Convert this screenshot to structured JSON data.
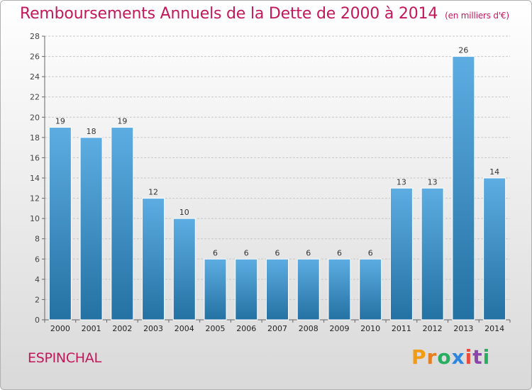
{
  "title": "Remboursements Annuels de la Dette de 2000 à 2014",
  "unit_note": "(en milliers d'€)",
  "commune": "ESPINCHAL",
  "brand": {
    "letters": [
      "P",
      "r",
      "o",
      "x",
      "i",
      "t",
      "i"
    ],
    "colors": [
      "#f39c12",
      "#e67e22",
      "#27ae60",
      "#2e86de",
      "#e74c3c",
      "#8e44ad",
      "#27ae60"
    ]
  },
  "colors": {
    "bar_top": "#5dade2",
    "bar_bottom": "#2471a3",
    "accent": "#c2185b"
  },
  "chart_data": {
    "type": "bar",
    "categories": [
      "2000",
      "2001",
      "2002",
      "2003",
      "2004",
      "2005",
      "2006",
      "2007",
      "2008",
      "2009",
      "2010",
      "2011",
      "2012",
      "2013",
      "2014"
    ],
    "values": [
      19,
      18,
      19,
      12,
      10,
      6,
      6,
      6,
      6,
      6,
      6,
      13,
      13,
      26,
      14
    ],
    "ylim": [
      0,
      28
    ],
    "yticks": [
      0,
      2,
      4,
      6,
      8,
      10,
      12,
      14,
      16,
      18,
      20,
      22,
      24,
      26,
      28
    ],
    "grid": true
  }
}
